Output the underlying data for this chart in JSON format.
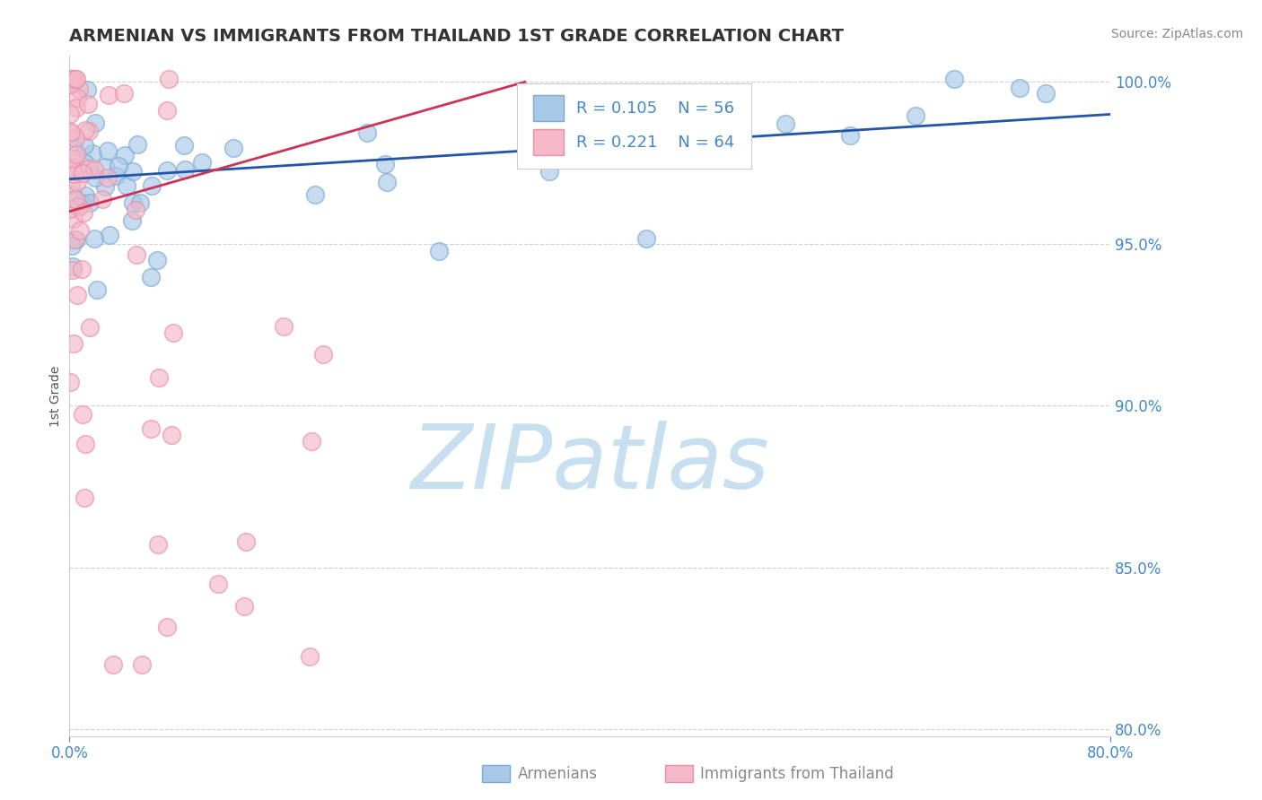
{
  "title": "ARMENIAN VS IMMIGRANTS FROM THAILAND 1ST GRADE CORRELATION CHART",
  "source": "Source: ZipAtlas.com",
  "ylabel": "1st Grade",
  "xlim": [
    0.0,
    0.8
  ],
  "ylim": [
    0.798,
    1.008
  ],
  "yticks": [
    0.8,
    0.85,
    0.9,
    0.95,
    1.0
  ],
  "yticklabels": [
    "80.0%",
    "85.0%",
    "90.0%",
    "95.0%",
    "100.0%"
  ],
  "legend_r1": "R = 0.105",
  "legend_n1": "N = 56",
  "legend_r2": "R = 0.221",
  "legend_n2": "N = 64",
  "blue_color": "#a8c8e8",
  "blue_edge_color": "#7aaad0",
  "pink_color": "#f4b8c8",
  "pink_edge_color": "#e890a8",
  "blue_line_color": "#2255aa",
  "pink_line_color": "#cc3355",
  "watermark_color": "#c8dff0",
  "title_color": "#333333",
  "axis_color": "#4488cc",
  "source_color": "#888888",
  "legend_text_color": "#4488cc",
  "bottom_label_color": "#888888",
  "grid_color": "#cccccc",
  "spine_color": "#cccccc",
  "blue_line_x": [
    0.0,
    0.8
  ],
  "blue_line_y": [
    0.97,
    0.99
  ],
  "pink_line_x": [
    0.0,
    0.35
  ],
  "pink_line_y": [
    0.96,
    1.0
  ]
}
